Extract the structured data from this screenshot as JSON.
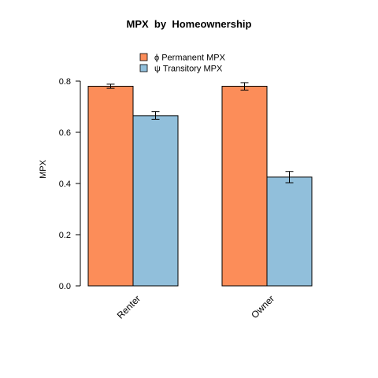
{
  "chart_data": {
    "type": "bar",
    "title": "MPX  by  Homeownership",
    "ylabel": "MPX",
    "xlabel": "",
    "categories": [
      "Renter",
      "Owner"
    ],
    "ylim": [
      0,
      0.8
    ],
    "yticks": [
      "0.0",
      "0.2",
      "0.4",
      "0.6",
      "0.8"
    ],
    "grid": false,
    "legend_position": "top",
    "series": [
      {
        "name": "ϕ Permanent MPX",
        "color": "#FC8D59",
        "values": [
          0.78,
          0.78
        ],
        "error_low": [
          0.772,
          0.765
        ],
        "error_high": [
          0.788,
          0.794
        ]
      },
      {
        "name": "ψ Transitory MPX",
        "color": "#91BFDB",
        "values": [
          0.665,
          0.425
        ],
        "error_low": [
          0.651,
          0.403
        ],
        "error_high": [
          0.681,
          0.447
        ]
      }
    ]
  }
}
